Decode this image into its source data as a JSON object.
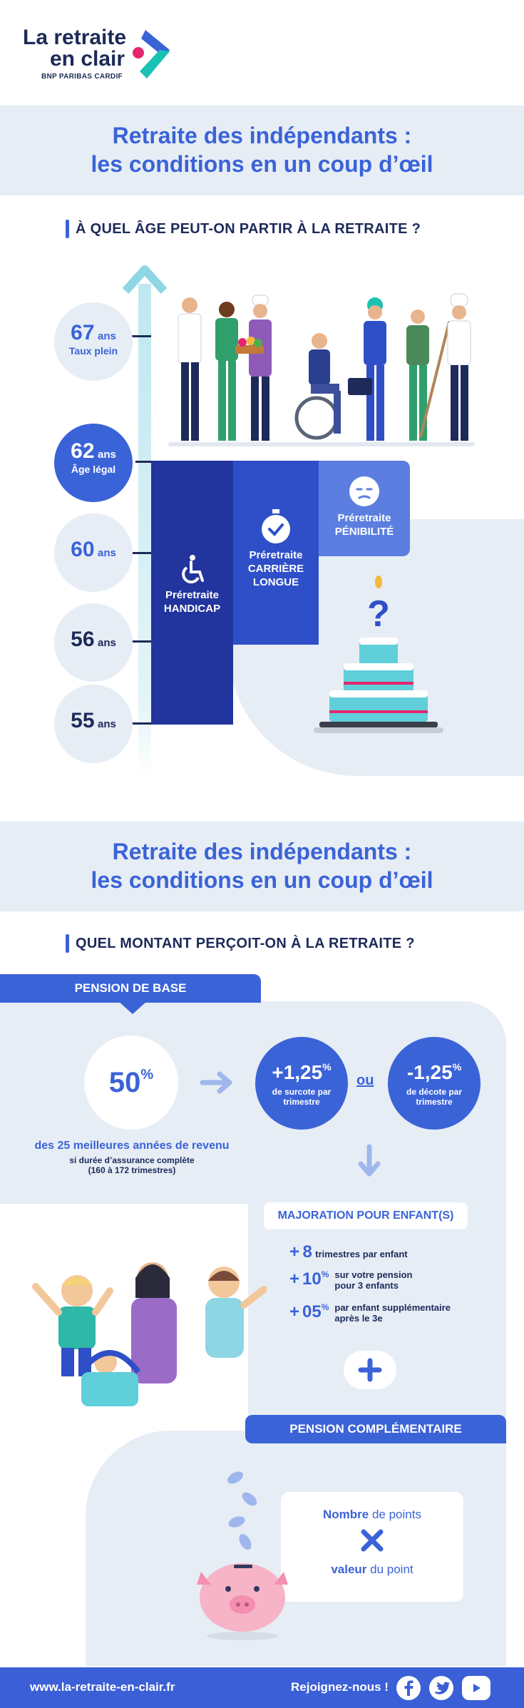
{
  "logo": {
    "line1": "La retraite",
    "line2": "en clair",
    "sub": "BNP PARIBAS CARDIF"
  },
  "colors": {
    "primary": "#3b63d8",
    "navy": "#1d2a5a",
    "band": "#e6edf5",
    "handicap": "#22349e",
    "carriere": "#2f4fc8",
    "penibilite": "#5b7ee0"
  },
  "section1": {
    "title_line1": "Retraite des indépendants :",
    "title_line2": "les conditions en un coup d’œil",
    "heading": "À QUEL ÂGE PEUT-ON PARTIR À LA RETRAITE ?",
    "ages": [
      {
        "num": "67",
        "unit": "ans",
        "label": "Taux plein"
      },
      {
        "num": "62",
        "unit": "ans",
        "label": "Âge légal"
      },
      {
        "num": "60",
        "unit": "ans",
        "label": ""
      },
      {
        "num": "56",
        "unit": "ans",
        "label": ""
      },
      {
        "num": "55",
        "unit": "ans",
        "label": ""
      }
    ],
    "bars": {
      "handicap": {
        "line1": "Préretraite",
        "line2": "HANDICAP",
        "icon": "wheelchair-icon"
      },
      "carriere": {
        "line1": "Préretraite",
        "line2": "CARRIÈRE",
        "line3": "LONGUE",
        "icon": "stopwatch-icon"
      },
      "penibilite": {
        "line1": "Préretraite",
        "line2": "PÉNIBILITÉ",
        "icon": "tired-face-icon"
      }
    }
  },
  "section2": {
    "title_line1": "Retraite des indépendants :",
    "title_line2": "les conditions en un coup d’œil",
    "heading": "QUEL MONTANT PERÇOIT-ON À LA RETRAITE ?",
    "pension_base": {
      "tag": "PENSION DE BASE",
      "percent": "50",
      "percent_sign": "%",
      "desc_line1": "des 25 meilleures années de revenu",
      "desc_line2": "si durée d’assurance complète",
      "desc_line3": "(160 à 172 trimestres)",
      "surcote_value": "+1,25",
      "surcote_sign": "%",
      "surcote_line1": "de surcote par",
      "surcote_line2": "trimestre",
      "ou": "ou",
      "decote_value": "-1,25",
      "decote_sign": "%",
      "decote_line1": "de décote par",
      "decote_line2": "trimestre"
    },
    "majoration": {
      "tag": "MAJORATION POUR ENFANT(S)",
      "items": [
        {
          "value": "8",
          "text1": "trimestres par enfant",
          "text2": ""
        },
        {
          "value": "10",
          "sign": "%",
          "text1": "sur votre pension",
          "text2": "pour 3 enfants"
        },
        {
          "value": "05",
          "sign": "%",
          "text1": "par enfant supplémentaire",
          "text2": "après le 3e"
        }
      ]
    },
    "complementaire": {
      "tag": "PENSION COMPLÉMENTAIRE",
      "points_bold": "Nombre",
      "points_rest": " de points",
      "valeur_bold": "valeur",
      "valeur_rest": " du point"
    }
  },
  "footer": {
    "url": "www.la-retraite-en-clair.fr",
    "join": "Rejoignez-nous !",
    "social": [
      "facebook-icon",
      "twitter-icon",
      "youtube-icon"
    ]
  }
}
